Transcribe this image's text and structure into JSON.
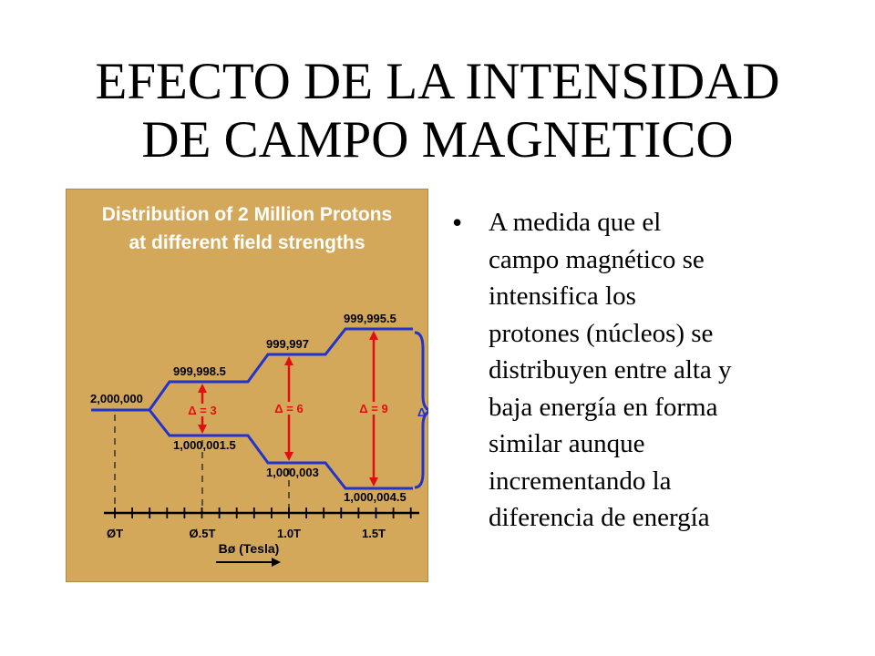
{
  "slide": {
    "title_lines": [
      "EFECTO DE LA INTENSIDAD",
      "DE CAMPO MAGNETICO"
    ],
    "bullet": {
      "marker": "•",
      "lines": [
        "A medida que el",
        "campo magnético se",
        "intensifica los",
        "protones (núcleos) se",
        "distribuyen entre alta y",
        "baja energía  en forma",
        "similar aunque",
        "incrementando la",
        "diferencia de energía"
      ]
    }
  },
  "figure": {
    "title_lines": [
      "Distribution of 2 Million Protons",
      "at different field strengths"
    ],
    "initial_level": "2,000,000",
    "levels": [
      {
        "field": "Ø.5T",
        "upper": "999,998.5",
        "lower": "1,000,001.5",
        "delta": "Δ = 3"
      },
      {
        "field": "1.0T",
        "upper": "999,997",
        "lower": "1,000,003",
        "delta": "Δ = 6"
      },
      {
        "field": "1.5T",
        "upper": "999,995.5",
        "lower": "1,000,004.5",
        "delta": "Δ = 9"
      }
    ],
    "axis_ticks": [
      "ØT",
      "Ø.5T",
      "1.0T",
      "1.5T"
    ],
    "axis_label": "Bø (Tesla)",
    "brace_label": "Δ",
    "colors": {
      "background": "#d4a85a",
      "title_text": "#ffffff",
      "level_line": "#2233cc",
      "delta_arrow": "#e01010",
      "delta_text": "#e01010",
      "text": "#000000"
    }
  }
}
